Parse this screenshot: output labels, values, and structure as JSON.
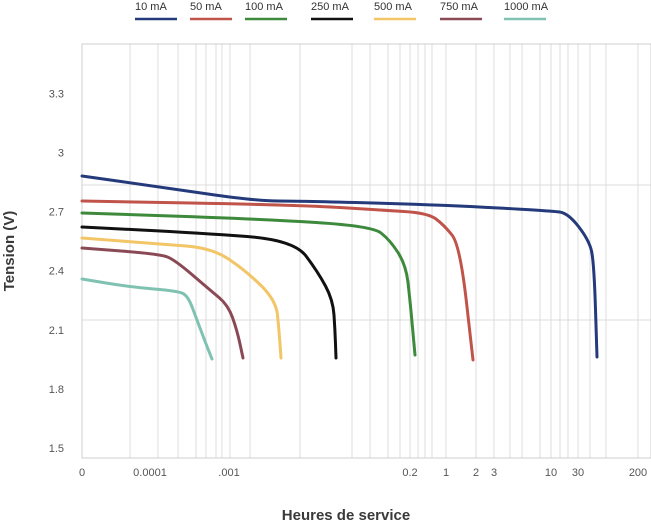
{
  "chart_data": {
    "type": "line",
    "xlabel": "Heures de service",
    "ylabel": "Tension (V)",
    "ylim": [
      1.45,
      3.55
    ],
    "yticks": [
      "3.3",
      "3",
      "2.7",
      "2.4",
      "2.1",
      "1.8",
      "1.5"
    ],
    "xticks": [
      "0",
      "0.0001",
      ".001",
      "0.2",
      "1",
      "2",
      "3",
      "10",
      "30",
      "200"
    ],
    "grid": true,
    "legend_position": "top",
    "series": [
      {
        "name": "10 mA",
        "color": "#243a7a",
        "x": [
          "0",
          "~0.002",
          "0.01",
          "0.1",
          "1",
          "10",
          "20",
          "35",
          "40",
          "42"
        ],
        "y": [
          2.85,
          2.72,
          2.72,
          2.71,
          2.7,
          2.68,
          2.66,
          2.52,
          2.4,
          1.9
        ]
      },
      {
        "name": "50 mA",
        "color": "#c0544a",
        "x": [
          "0",
          "0.1",
          "0.5",
          "1",
          "1.5",
          "1.8",
          "2"
        ],
        "y": [
          2.72,
          2.67,
          2.66,
          2.62,
          2.5,
          2.25,
          1.88
        ]
      },
      {
        "name": "100 mA",
        "color": "#3d8a3d",
        "x": [
          "0",
          "0.01",
          "0.1",
          "0.15",
          "0.2",
          "0.21",
          "0.22"
        ],
        "y": [
          2.66,
          2.61,
          2.59,
          2.52,
          2.4,
          2.2,
          1.92
        ]
      },
      {
        "name": "250 mA",
        "color": "#111111",
        "x": [
          "0",
          "0.001",
          "0.005",
          "0.015",
          "0.02",
          "0.022",
          "0.023"
        ],
        "y": [
          2.58,
          2.54,
          2.52,
          2.38,
          2.2,
          2.08,
          1.9
        ]
      },
      {
        "name": "500 mA",
        "color": "#f2c567",
        "x": [
          "0",
          "0.0005",
          "0.001",
          "0.002",
          "0.003",
          "0.0035",
          "0.0036"
        ],
        "y": [
          2.53,
          2.48,
          2.44,
          2.33,
          2.2,
          2.05,
          1.9
        ]
      },
      {
        "name": "750 mA",
        "color": "#8a4a55",
        "x": [
          "0",
          "0.0002",
          "0.0005",
          "0.001",
          "0.0012",
          "0.0013"
        ],
        "y": [
          2.48,
          2.45,
          2.36,
          2.18,
          2.0,
          1.9
        ]
      },
      {
        "name": "1000 mA",
        "color": "#7fc2b2",
        "x": [
          "0",
          "0.0002",
          "0.0004",
          "0.0005",
          "0.0006",
          "0.0007"
        ],
        "y": [
          2.32,
          2.27,
          2.25,
          2.16,
          2.02,
          1.91
        ]
      }
    ]
  }
}
